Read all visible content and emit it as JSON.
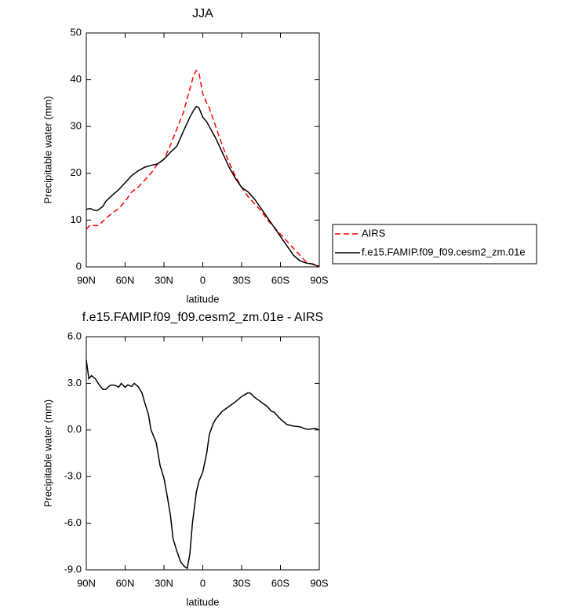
{
  "chart_data": [
    {
      "type": "line",
      "title": "JJA",
      "x_label": "latitude",
      "y_label": "Precipitable water (mm)",
      "xlim": [
        90,
        -90
      ],
      "ylim": [
        0,
        50
      ],
      "xticks": [
        {
          "value": 90,
          "label": "90N"
        },
        {
          "value": 60,
          "label": "60N"
        },
        {
          "value": 30,
          "label": "30N"
        },
        0,
        {
          "value": -30,
          "label": "30S"
        },
        {
          "value": -60,
          "label": "60S"
        },
        {
          "value": -90,
          "label": "90S"
        }
      ],
      "yticks": [
        0,
        10,
        20,
        30,
        40,
        50
      ],
      "legend": "right",
      "x": [
        90,
        87,
        85,
        82,
        80,
        77,
        75,
        70,
        65,
        60,
        55,
        50,
        45,
        40,
        35,
        30,
        25,
        20,
        15,
        10,
        7,
        5,
        3,
        0,
        -3,
        -5,
        -10,
        -15,
        -20,
        -25,
        -30,
        -35,
        -40,
        -45,
        -50,
        -55,
        -60,
        -65,
        -70,
        -75,
        -80,
        -85,
        -90
      ],
      "series": [
        {
          "name": "AIRS",
          "color": "#ff0000",
          "dash": "dashed",
          "values": [
            8,
            9,
            8.9,
            8.8,
            9,
            9.8,
            10.3,
            11.5,
            12.5,
            14,
            16,
            17,
            18.5,
            20,
            22,
            23,
            26,
            29.5,
            33,
            38,
            41,
            42,
            41.5,
            37,
            35,
            34,
            30,
            26,
            22.5,
            19.5,
            17,
            15,
            13.5,
            12,
            10,
            8.5,
            7,
            5.5,
            4,
            2.5,
            1,
            0.5,
            0.2
          ]
        },
        {
          "name": "f.e15.FAMIP.f09_f09.cesm2_zm.01e",
          "color": "#000000",
          "dash": "solid",
          "values": [
            12.3,
            12.5,
            12.2,
            12,
            12.3,
            13,
            14,
            15.3,
            16.5,
            18,
            19.5,
            20.5,
            21.3,
            21.7,
            22,
            23,
            24.5,
            25.8,
            29,
            32,
            33.5,
            34.3,
            34,
            32,
            31,
            30,
            27.5,
            24.5,
            21.5,
            19,
            17,
            16,
            14.5,
            12.5,
            10.5,
            8.5,
            6.5,
            4.5,
            2.5,
            1.3,
            0.8,
            0.6,
            0
          ]
        }
      ]
    },
    {
      "type": "line",
      "title": "f.e15.FAMIP.f09_f09.cesm2_zm.01e - AIRS",
      "x_label": "latitude",
      "y_label": "Precipitable water (mm)",
      "xlim": [
        90,
        -90
      ],
      "ylim": [
        -9,
        6
      ],
      "xticks": [
        {
          "value": 90,
          "label": "90N"
        },
        {
          "value": 60,
          "label": "60N"
        },
        {
          "value": 30,
          "label": "30N"
        },
        0,
        {
          "value": -30,
          "label": "30S"
        },
        {
          "value": -60,
          "label": "60S"
        },
        {
          "value": -90,
          "label": "90S"
        }
      ],
      "yticks": [
        {
          "value": 6,
          "label": "6.0"
        },
        {
          "value": 3,
          "label": "3.0"
        },
        {
          "value": 0,
          "label": "0.0"
        },
        {
          "value": -3,
          "label": "-3.0"
        },
        {
          "value": -6,
          "label": "-6.0"
        },
        {
          "value": -9,
          "label": "-9.0"
        }
      ],
      "x": [
        90,
        88,
        86,
        83,
        80,
        77,
        75,
        72,
        70,
        67,
        65,
        63,
        60,
        58,
        55,
        53,
        50,
        47,
        45,
        42,
        40,
        38,
        36,
        33,
        30,
        28,
        25,
        23,
        20,
        17,
        14,
        12,
        10,
        8,
        5,
        3,
        0,
        -3,
        -5,
        -8,
        -10,
        -15,
        -20,
        -25,
        -30,
        -33,
        -35,
        -37,
        -40,
        -45,
        -50,
        -53,
        -55,
        -60,
        -63,
        -65,
        -70,
        -75,
        -80,
        -83,
        -87,
        -90
      ],
      "series": [
        {
          "name": "f.e15.FAMIP.f09_f09.cesm2_zm.01e - AIRS",
          "color": "#000000",
          "values": [
            4.5,
            3.3,
            3.5,
            3.3,
            2.9,
            2.6,
            2.6,
            2.85,
            2.9,
            2.85,
            2.75,
            3.0,
            2.75,
            2.9,
            2.8,
            3.0,
            2.8,
            2.4,
            1.8,
            1.0,
            0.0,
            -0.4,
            -0.8,
            -2.3,
            -3.1,
            -4.0,
            -5.5,
            -7.0,
            -7.8,
            -8.5,
            -8.8,
            -8.9,
            -8.0,
            -6.0,
            -4.0,
            -3.3,
            -2.7,
            -1.5,
            -0.3,
            0.4,
            0.7,
            1.2,
            1.5,
            1.8,
            2.15,
            2.3,
            2.4,
            2.35,
            2.1,
            1.8,
            1.5,
            1.2,
            1.15,
            0.7,
            0.5,
            0.35,
            0.25,
            0.2,
            0.05,
            0.05,
            0.1,
            0.0
          ]
        }
      ]
    }
  ]
}
